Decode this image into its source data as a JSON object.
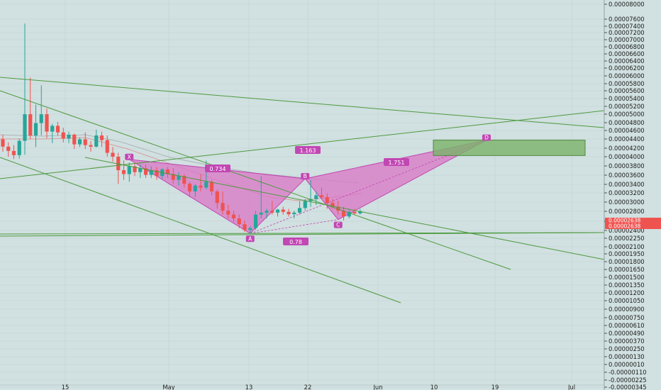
{
  "chart_data": {
    "type": "candlestick",
    "y_axis": {
      "position": "right",
      "ticks": [
        "0.00008000",
        "0.00007600",
        "0.00007400",
        "0.00007200",
        "0.00007000",
        "0.00006800",
        "0.00006600",
        "0.00006400",
        "0.00006200",
        "0.00006000",
        "0.00005800",
        "0.00005600",
        "0.00005400",
        "0.00005200",
        "0.00005000",
        "0.00004800",
        "0.00004600",
        "0.00004400",
        "0.00004200",
        "0.00004000",
        "0.00003800",
        "0.00003600",
        "0.00003400",
        "0.00003200",
        "0.00003000",
        "0.00002800",
        "0.00002600",
        "0.00002400",
        "0.00002250",
        "0.00002100",
        "0.00001950",
        "0.00001800",
        "0.00001650",
        "0.00001500",
        "0.00001350",
        "0.00001200",
        "0.00001050",
        "0.00000900",
        "0.00000750",
        "0.00000610",
        "0.00000490",
        "0.00000370",
        "0.00000250",
        "0.00000130",
        "0.00000010",
        "-0.00000110",
        "-0.00000225",
        "-0.00000345"
      ],
      "current_price_labels": [
        "0.00002638",
        "0.00002638"
      ]
    },
    "x_axis": {
      "ticks": [
        "15",
        "May",
        "13",
        "22",
        "Jun",
        "10",
        "19",
        "Jul"
      ]
    },
    "candles": [
      {
        "o": 4.5e-05,
        "h": 4.62e-05,
        "l": 4.18e-05,
        "c": 4.31e-05
      },
      {
        "o": 4.31e-05,
        "h": 4.42e-05,
        "l": 4.05e-05,
        "c": 4.2e-05
      },
      {
        "o": 4.2e-05,
        "h": 4.35e-05,
        "l": 3.99e-05,
        "c": 4.09e-05
      },
      {
        "o": 4.09e-05,
        "h": 4.52e-05,
        "l": 4e-05,
        "c": 4.46e-05
      },
      {
        "o": 4.46e-05,
        "h": 7.5e-05,
        "l": 4.1e-05,
        "c": 5.15e-05
      },
      {
        "o": 5.15e-05,
        "h": 6.1e-05,
        "l": 4.5e-05,
        "c": 4.6e-05
      },
      {
        "o": 4.6e-05,
        "h": 5.4e-05,
        "l": 4.3e-05,
        "c": 4.92e-05
      },
      {
        "o": 4.92e-05,
        "h": 5.9e-05,
        "l": 4.6e-05,
        "c": 5.15e-05
      },
      {
        "o": 5.15e-05,
        "h": 5.3e-05,
        "l": 4.53e-05,
        "c": 4.7e-05
      },
      {
        "o": 4.7e-05,
        "h": 4.9e-05,
        "l": 4.4e-05,
        "c": 4.85e-05
      },
      {
        "o": 4.85e-05,
        "h": 4.95e-05,
        "l": 4.6e-05,
        "c": 4.68e-05
      },
      {
        "o": 4.68e-05,
        "h": 4.8e-05,
        "l": 4.42e-05,
        "c": 4.52e-05
      },
      {
        "o": 4.52e-05,
        "h": 4.7e-05,
        "l": 4.4e-05,
        "c": 4.62e-05
      },
      {
        "o": 4.62e-05,
        "h": 4.65e-05,
        "l": 4.25e-05,
        "c": 4.37e-05
      },
      {
        "o": 4.37e-05,
        "h": 4.55e-05,
        "l": 4.3e-05,
        "c": 4.5e-05
      },
      {
        "o": 4.5e-05,
        "h": 4.68e-05,
        "l": 4.25e-05,
        "c": 4.35e-05
      },
      {
        "o": 4.35e-05,
        "h": 4.45e-05,
        "l": 4.18e-05,
        "c": 4.31e-05
      },
      {
        "o": 4.31e-05,
        "h": 4.75e-05,
        "l": 4.29e-05,
        "c": 4.6e-05
      },
      {
        "o": 4.6e-05,
        "h": 4.7e-05,
        "l": 4.3e-05,
        "c": 4.48e-05
      },
      {
        "o": 4.48e-05,
        "h": 4.6e-05,
        "l": 4.05e-05,
        "c": 4.15e-05
      },
      {
        "o": 4.15e-05,
        "h": 4.3e-05,
        "l": 3.92e-05,
        "c": 4.05e-05
      },
      {
        "o": 4.05e-05,
        "h": 4.15e-05,
        "l": 3.35e-05,
        "c": 3.7e-05
      },
      {
        "o": 3.7e-05,
        "h": 3.95e-05,
        "l": 3.45e-05,
        "c": 3.6e-05
      },
      {
        "o": 3.6e-05,
        "h": 3.9e-05,
        "l": 3.4e-05,
        "c": 3.8e-05
      },
      {
        "o": 3.8e-05,
        "h": 3.9e-05,
        "l": 3.55e-05,
        "c": 3.65e-05
      },
      {
        "o": 3.65e-05,
        "h": 3.85e-05,
        "l": 3.5e-05,
        "c": 3.75e-05
      },
      {
        "o": 3.75e-05,
        "h": 3.85e-05,
        "l": 3.5e-05,
        "c": 3.58e-05
      },
      {
        "o": 3.58e-05,
        "h": 3.8e-05,
        "l": 3.5e-05,
        "c": 3.7e-05
      },
      {
        "o": 3.7e-05,
        "h": 3.78e-05,
        "l": 3.45e-05,
        "c": 3.55e-05
      },
      {
        "o": 3.55e-05,
        "h": 3.75e-05,
        "l": 3.48e-05,
        "c": 3.72e-05
      },
      {
        "o": 3.72e-05,
        "h": 3.78e-05,
        "l": 3.5e-05,
        "c": 3.6e-05
      },
      {
        "o": 3.6e-05,
        "h": 3.75e-05,
        "l": 3.35e-05,
        "c": 3.45e-05
      },
      {
        "o": 3.45e-05,
        "h": 3.65e-05,
        "l": 3.3e-05,
        "c": 3.55e-05
      },
      {
        "o": 3.55e-05,
        "h": 3.6e-05,
        "l": 3.25e-05,
        "c": 3.35e-05
      },
      {
        "o": 3.35e-05,
        "h": 3.4e-05,
        "l": 3e-05,
        "c": 3.15e-05
      },
      {
        "o": 3.15e-05,
        "h": 3.35e-05,
        "l": 3e-05,
        "c": 3.3e-05
      },
      {
        "o": 3.3e-05,
        "h": 3.6e-05,
        "l": 3.15e-05,
        "c": 3.25e-05
      },
      {
        "o": 3.25e-05,
        "h": 3.95e-05,
        "l": 3.2e-05,
        "c": 3.4e-05
      },
      {
        "o": 3.4e-05,
        "h": 3.45e-05,
        "l": 3.05e-05,
        "c": 3.15e-05
      },
      {
        "o": 3.15e-05,
        "h": 3.2e-05,
        "l": 2.7e-05,
        "c": 2.85e-05
      },
      {
        "o": 2.85e-05,
        "h": 3.15e-05,
        "l": 2.55e-05,
        "c": 2.65e-05
      },
      {
        "o": 2.65e-05,
        "h": 2.8e-05,
        "l": 2.45e-05,
        "c": 2.55e-05
      },
      {
        "o": 2.55e-05,
        "h": 2.65e-05,
        "l": 2.35e-05,
        "c": 2.45e-05
      },
      {
        "o": 2.45e-05,
        "h": 2.55e-05,
        "l": 2.2e-05,
        "c": 2.3e-05
      },
      {
        "o": 2.3e-05,
        "h": 2.4e-05,
        "l": 2.1e-05,
        "c": 2.15e-05
      },
      {
        "o": 2.15e-05,
        "h": 2.25e-05,
        "l": 2.05e-05,
        "c": 2.2e-05
      },
      {
        "o": 2.2e-05,
        "h": 2.65e-05,
        "l": 2.15e-05,
        "c": 2.55e-05
      },
      {
        "o": 2.55e-05,
        "h": 3.55e-05,
        "l": 2.45e-05,
        "c": 2.6e-05
      },
      {
        "o": 2.6e-05,
        "h": 2.7e-05,
        "l": 2.45e-05,
        "c": 2.65e-05
      },
      {
        "o": 2.65e-05,
        "h": 2.9e-05,
        "l": 2.55e-05,
        "c": 2.6e-05
      },
      {
        "o": 2.6e-05,
        "h": 2.7e-05,
        "l": 2.5e-05,
        "c": 2.68e-05
      },
      {
        "o": 2.68e-05,
        "h": 2.75e-05,
        "l": 2.55e-05,
        "c": 2.62e-05
      },
      {
        "o": 2.62e-05,
        "h": 2.7e-05,
        "l": 2.5e-05,
        "c": 2.56e-05
      },
      {
        "o": 2.56e-05,
        "h": 2.65e-05,
        "l": 2.45e-05,
        "c": 2.6e-05
      },
      {
        "o": 2.6e-05,
        "h": 2.9e-05,
        "l": 2.55e-05,
        "c": 2.72e-05
      },
      {
        "o": 2.72e-05,
        "h": 2.95e-05,
        "l": 2.65e-05,
        "c": 2.9e-05
      },
      {
        "o": 2.9e-05,
        "h": 3.45e-05,
        "l": 2.75e-05,
        "c": 2.95e-05
      },
      {
        "o": 2.95e-05,
        "h": 3.15e-05,
        "l": 2.8e-05,
        "c": 3.05e-05
      },
      {
        "o": 3.05e-05,
        "h": 3.25e-05,
        "l": 2.95e-05,
        "c": 3e-05
      },
      {
        "o": 3e-05,
        "h": 3.1e-05,
        "l": 2.7e-05,
        "c": 2.85e-05
      },
      {
        "o": 2.85e-05,
        "h": 2.95e-05,
        "l": 2.7e-05,
        "c": 2.75e-05
      },
      {
        "o": 2.75e-05,
        "h": 2.9e-05,
        "l": 2.55e-05,
        "c": 2.65e-05
      },
      {
        "o": 2.65e-05,
        "h": 2.75e-05,
        "l": 2.4e-05,
        "c": 2.5e-05
      },
      {
        "o": 2.5e-05,
        "h": 2.7e-05,
        "l": 2.45e-05,
        "c": 2.62e-05
      },
      {
        "o": 2.62e-05,
        "h": 2.7e-05,
        "l": 2.55e-05,
        "c": 2.58e-05
      },
      {
        "o": 2.58e-05,
        "h": 2.7e-05,
        "l": 2.55e-05,
        "c": 2.638e-05
      }
    ],
    "pattern": {
      "points": [
        {
          "label": "X",
          "value": 3.98e-05
        },
        {
          "label": "A",
          "value": 2.06e-05
        },
        {
          "label": "B",
          "value": 3.48e-05
        },
        {
          "label": "C",
          "value": 2.42e-05
        },
        {
          "label": "D",
          "value": 4.48e-05
        }
      ],
      "ratios": [
        {
          "label": "0.734"
        },
        {
          "label": "0.78"
        },
        {
          "label": "1.751"
        },
        {
          "label": "1.163"
        }
      ]
    },
    "target_zone": {
      "top": 4.48e-05,
      "bottom": 4.08e-05
    },
    "colors": {
      "background": "#d1e0e0",
      "up": "#26a69a",
      "down": "#ef5350",
      "pattern_fill": "#d975c6",
      "pattern_stroke": "#c147b3",
      "trendline": "#4c9a3f",
      "zone_fill": "#7bb369",
      "price_tag": "#ef5350"
    }
  }
}
